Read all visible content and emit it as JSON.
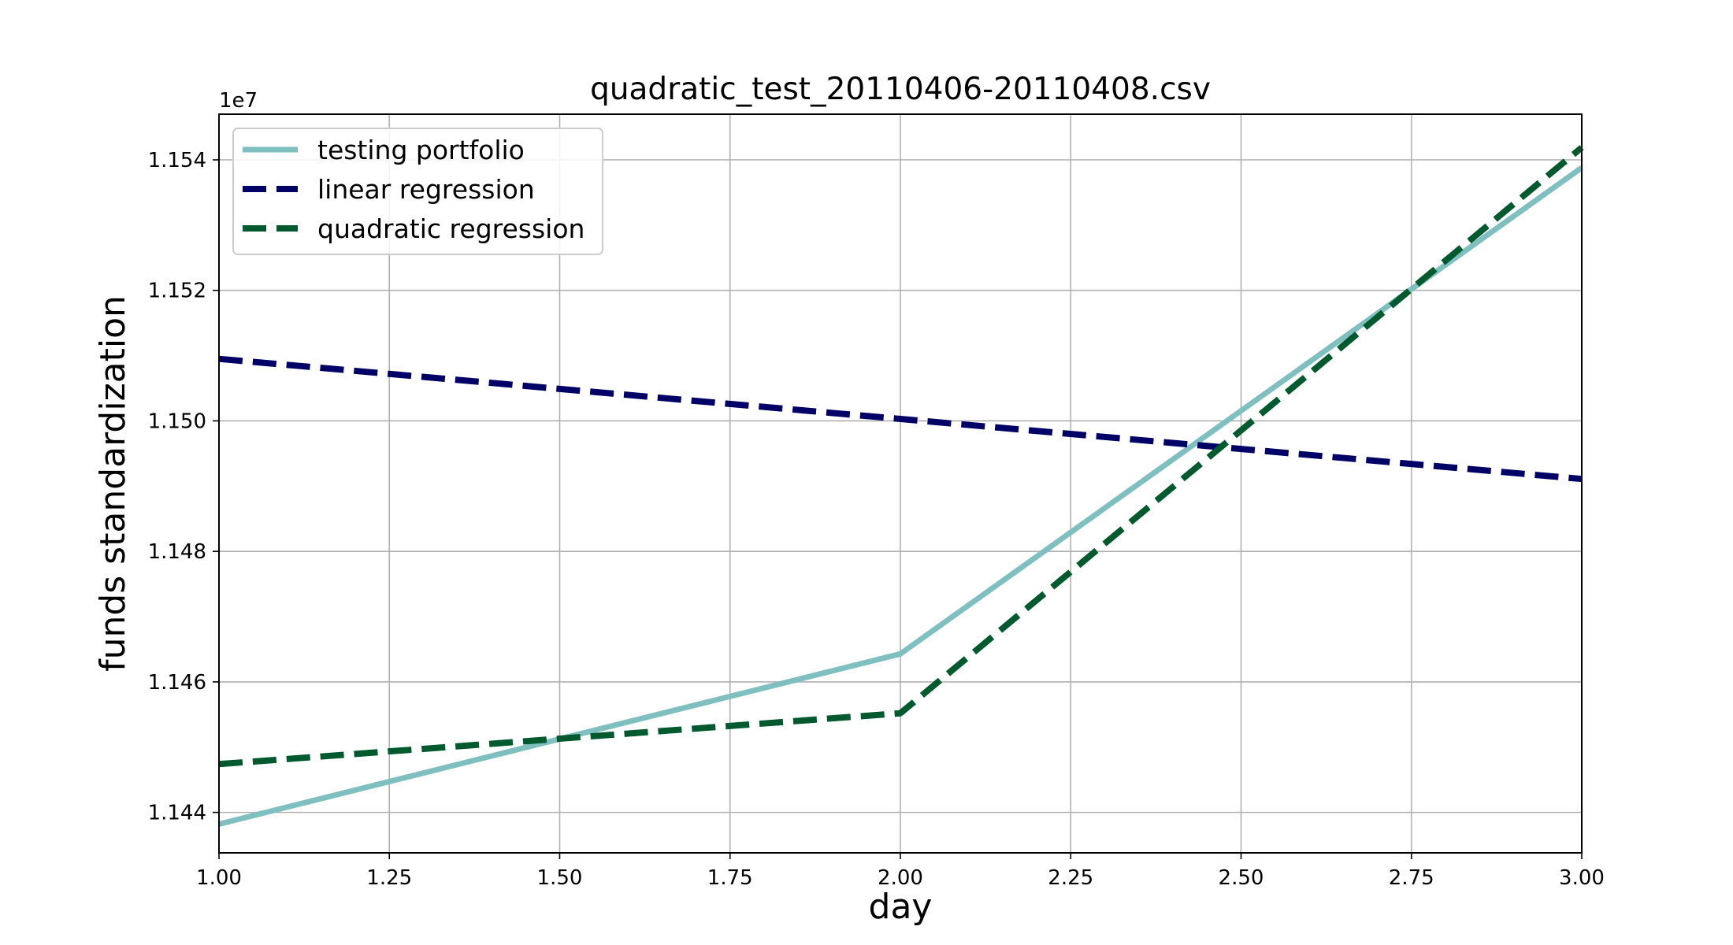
{
  "chart_data": {
    "type": "line",
    "title": "quadratic_test_20110406-20110408.csv",
    "xlabel": "day",
    "ylabel": "funds standardization",
    "y_offset_label": "1e7",
    "xlim": [
      1.0,
      3.0
    ],
    "ylim": [
      1.14338,
      1.1547
    ],
    "x_ticks": [
      1.0,
      1.25,
      1.5,
      1.75,
      2.0,
      2.25,
      2.5,
      2.75,
      3.0
    ],
    "x_tick_labels": [
      "1.00",
      "1.25",
      "1.50",
      "1.75",
      "2.00",
      "2.25",
      "2.50",
      "2.75",
      "3.00"
    ],
    "y_ticks": [
      1.144,
      1.146,
      1.148,
      1.15,
      1.152,
      1.154
    ],
    "y_tick_labels": [
      "1.144",
      "1.146",
      "1.148",
      "1.150",
      "1.152",
      "1.154"
    ],
    "grid": true,
    "legend_position": "top-left",
    "series": [
      {
        "name": "testing portfolio",
        "x": [
          1,
          2,
          3
        ],
        "y": [
          1.14382,
          1.14643,
          1.15388
        ],
        "color": "#7fbfbf",
        "style": "solid"
      },
      {
        "name": "linear regression",
        "x": [
          1,
          2,
          3
        ],
        "y": [
          1.15095,
          1.15003,
          1.14911
        ],
        "color": "#000066",
        "style": "dashed"
      },
      {
        "name": "quadratic regression",
        "x": [
          1,
          2,
          3
        ],
        "y": [
          1.14474,
          1.14552,
          1.15419
        ],
        "color": "#005a2e",
        "style": "dashed"
      }
    ]
  }
}
